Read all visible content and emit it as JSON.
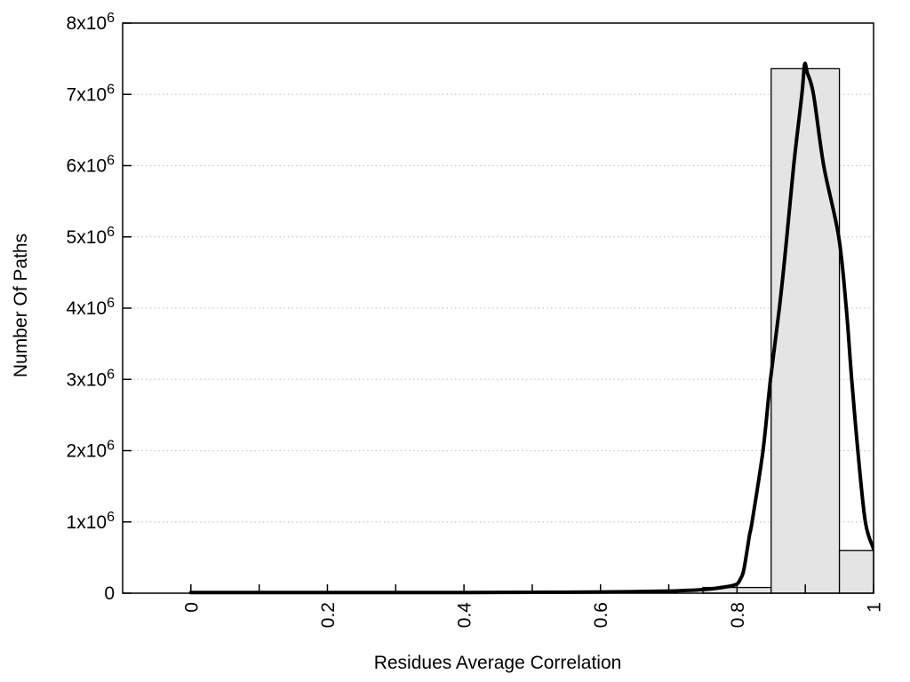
{
  "page": {
    "background": "#ffffff"
  },
  "chart_data": {
    "type": "bar",
    "subtype": "histogram-with-fit-curve",
    "title": "",
    "xlabel": "Residues Average Correlation",
    "ylabel": "Number Of Paths",
    "xlim": [
      -0.1,
      1.0
    ],
    "ylim": [
      0,
      8000000
    ],
    "grid": {
      "horizontal": true,
      "vertical": false,
      "style": "dotted"
    },
    "legend": null,
    "x_ticks": [
      0,
      0.1,
      0.2,
      0.3,
      0.4,
      0.5,
      0.6,
      0.7,
      0.8,
      0.9,
      1.0
    ],
    "x_tick_labels": [
      {
        "value": 0,
        "label": "0"
      },
      {
        "value": 0.2,
        "label": "0.2"
      },
      {
        "value": 0.4,
        "label": "0.4"
      },
      {
        "value": 0.6,
        "label": "0.6"
      },
      {
        "value": 0.8,
        "label": "0.8"
      },
      {
        "value": 1,
        "label": "1"
      }
    ],
    "y_ticks": [
      {
        "value": 0,
        "mantissa": "0",
        "exponent": ""
      },
      {
        "value": 1000000,
        "mantissa": "1x10",
        "exponent": "6"
      },
      {
        "value": 2000000,
        "mantissa": "2x10",
        "exponent": "6"
      },
      {
        "value": 3000000,
        "mantissa": "3x10",
        "exponent": "6"
      },
      {
        "value": 4000000,
        "mantissa": "4x10",
        "exponent": "6"
      },
      {
        "value": 5000000,
        "mantissa": "5x10",
        "exponent": "6"
      },
      {
        "value": 6000000,
        "mantissa": "6x10",
        "exponent": "6"
      },
      {
        "value": 7000000,
        "mantissa": "7x10",
        "exponent": "6"
      },
      {
        "value": 8000000,
        "mantissa": "8x10",
        "exponent": "6"
      }
    ],
    "bars": [
      {
        "bin_start": 0.75,
        "bin_end": 0.85,
        "value": 80000
      },
      {
        "bin_start": 0.85,
        "bin_end": 0.95,
        "value": 7360000
      },
      {
        "bin_start": 0.95,
        "bin_end": 1.05,
        "value": 600000
      }
    ],
    "fit_curve": {
      "x": [
        0,
        0.1,
        0.2,
        0.3,
        0.4,
        0.5,
        0.6,
        0.65,
        0.7,
        0.73,
        0.75,
        0.77,
        0.79,
        0.8,
        0.805,
        0.81,
        0.818,
        0.822,
        0.838,
        0.849,
        0.862,
        0.873,
        0.883,
        0.895,
        0.899,
        0.903,
        0.912,
        0.927,
        0.949,
        0.96,
        0.968,
        0.977,
        0.988,
        1.0
      ],
      "y": [
        10000,
        10000,
        10000,
        10000,
        10000,
        12000,
        18000,
        22000,
        30000,
        40000,
        50000,
        70000,
        100000,
        130000,
        200000,
        330000,
        800000,
        1000000,
        2000000,
        3000000,
        4000000,
        5000000,
        6000000,
        7000000,
        7420000,
        7300000,
        7000000,
        6000000,
        5000000,
        4000000,
        3000000,
        2000000,
        1000000,
        620000
      ]
    },
    "colors": {
      "bar_fill": "#e4e4e4",
      "bar_stroke": "#000000",
      "curve": "#000000",
      "grid": "#c8c8c8",
      "frame": "#000000",
      "text": "#000000"
    }
  }
}
